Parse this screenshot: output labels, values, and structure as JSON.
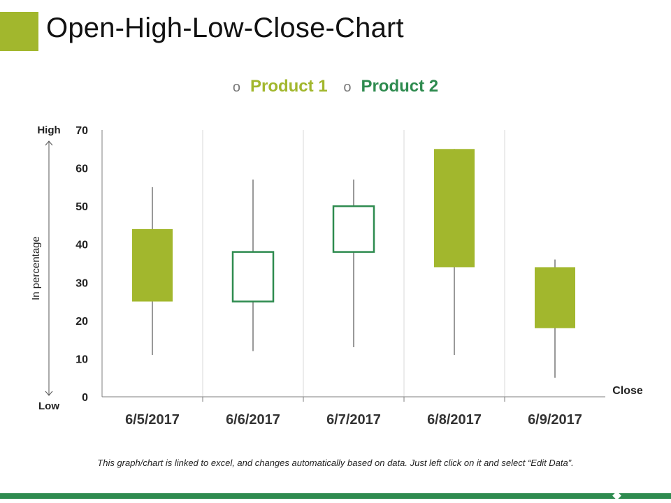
{
  "page": {
    "title": "Open-High-Low-Close-Chart",
    "footnote": "This graph/chart is linked to excel, and changes automatically based on data. Just left click on it and select “Edit Data”.",
    "colors": {
      "accent": "#a2b72d",
      "dark_green": "#2e8b4f",
      "bar": "#2e8b4f"
    }
  },
  "chart_data": {
    "type": "ohlc",
    "categories": [
      "6/5/2017",
      "6/6/2017",
      "6/7/2017",
      "6/8/2017",
      "6/9/2017"
    ],
    "series": [
      {
        "name": "Product 1",
        "color": "#a2b72d",
        "style": "filled"
      },
      {
        "name": "Product 2",
        "color": "#2e8b4f",
        "style": "hollow"
      }
    ],
    "points": [
      {
        "date": "6/5/2017",
        "series": "Product 1",
        "low": 11,
        "high": 55,
        "body_low": 25,
        "body_high": 44
      },
      {
        "date": "6/6/2017",
        "series": "Product 2",
        "low": 12,
        "high": 57,
        "body_low": 25,
        "body_high": 38
      },
      {
        "date": "6/7/2017",
        "series": "Product 2",
        "low": 13,
        "high": 57,
        "body_low": 38,
        "body_high": 50
      },
      {
        "date": "6/8/2017",
        "series": "Product 1",
        "low": 11,
        "high": 65,
        "body_low": 34,
        "body_high": 65
      },
      {
        "date": "6/9/2017",
        "series": "Product 1",
        "low": 5,
        "high": 36,
        "body_low": 18,
        "body_high": 34
      }
    ],
    "yticks": [
      0,
      10,
      20,
      30,
      40,
      50,
      60,
      70
    ],
    "ylim": [
      0,
      70
    ],
    "ylabel": "In percentage",
    "y_high_label": "High",
    "y_low_label": "Low",
    "xlabel": "Close",
    "grid": "vertical",
    "legend_position": "top"
  }
}
